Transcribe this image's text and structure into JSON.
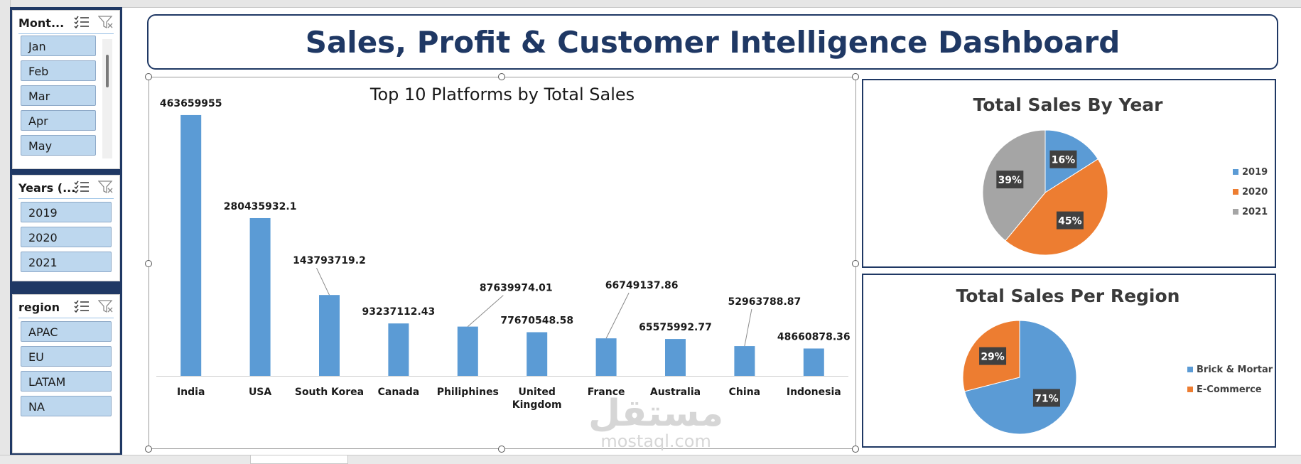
{
  "dashboard": {
    "title": "Sales, Profit & Customer Intelligence Dashboard"
  },
  "slicers": {
    "month": {
      "title": "Mont...",
      "items": [
        "Jan",
        "Feb",
        "Mar",
        "Apr",
        "May"
      ]
    },
    "year": {
      "title": "Years (...",
      "items": [
        "2019",
        "2020",
        "2021"
      ]
    },
    "region": {
      "title": "region",
      "items": [
        "APAC",
        "EU",
        "LATAM",
        "NA"
      ]
    }
  },
  "chart_data": [
    {
      "type": "bar",
      "title": "Top 10 Platforms by Total Sales",
      "categories": [
        "India",
        "USA",
        "South Korea",
        "Canada",
        "Philiphines",
        "United Kingdom",
        "France",
        "Australia",
        "China",
        "Indonesia"
      ],
      "values": [
        463659955,
        280435932.1,
        143793719.2,
        93237112.43,
        87639974.01,
        77670548.58,
        66749137.86,
        65575992.77,
        52963788.87,
        48660878.36
      ],
      "data_labels": [
        "463659955",
        "280435932.1",
        "143793719.2",
        "93237112.43",
        "87639974.01",
        "77670548.58",
        "66749137.86",
        "65575992.77",
        "52963788.87",
        "48660878.36"
      ],
      "ylim": [
        0,
        480000000
      ],
      "color": "#5b9bd5",
      "grid": false
    },
    {
      "type": "pie",
      "title": "Total Sales  By Year",
      "labels": [
        "2019",
        "2020",
        "2021"
      ],
      "values": [
        16,
        45,
        39
      ],
      "data_labels": [
        "16%",
        "45%",
        "39%"
      ],
      "colors": [
        "#5b9bd5",
        "#ed7d31",
        "#a5a5a5"
      ],
      "legend": "right"
    },
    {
      "type": "pie",
      "title": "Total Sales Per Region",
      "labels": [
        "Brick & Mortar",
        "E-Commerce"
      ],
      "values": [
        71,
        29
      ],
      "data_labels": [
        "71%",
        "29%"
      ],
      "colors": [
        "#5b9bd5",
        "#ed7d31"
      ],
      "legend": "right"
    }
  ],
  "watermark": {
    "arabic": "مستقل",
    "latin": "mostaql.com"
  }
}
